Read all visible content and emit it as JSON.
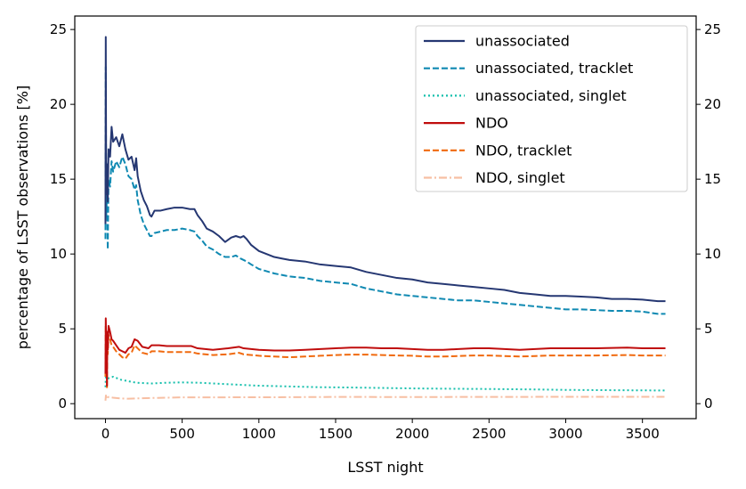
{
  "chart_data": {
    "type": "line",
    "title": "",
    "xlabel": "LSST night",
    "ylabel": "percentage of LSST observations [%]",
    "xlim": [
      -200,
      3850
    ],
    "ylim": [
      -1.0,
      25.9
    ],
    "xticks": [
      0,
      500,
      1000,
      1500,
      2000,
      2500,
      3000,
      3500
    ],
    "yticks": [
      0,
      5,
      10,
      15,
      20,
      25
    ],
    "secondary_y_axis": "right, same scale as left",
    "grid": false,
    "legend_position": "upper right",
    "series": [
      {
        "name": "unassociated",
        "color": "#253772",
        "style": "solid",
        "points": [
          [
            0,
            12
          ],
          [
            2,
            24.5
          ],
          [
            5,
            14
          ],
          [
            10,
            16
          ],
          [
            15,
            13.5
          ],
          [
            20,
            17
          ],
          [
            30,
            16.5
          ],
          [
            40,
            18.5
          ],
          [
            50,
            17.5
          ],
          [
            70,
            17.8
          ],
          [
            90,
            17.2
          ],
          [
            110,
            18
          ],
          [
            130,
            17
          ],
          [
            150,
            16.3
          ],
          [
            170,
            16.5
          ],
          [
            190,
            15.6
          ],
          [
            200,
            16.4
          ],
          [
            210,
            15.2
          ],
          [
            230,
            14.2
          ],
          [
            250,
            13.6
          ],
          [
            270,
            13.2
          ],
          [
            290,
            12.6
          ],
          [
            300,
            12.5
          ],
          [
            320,
            12.9
          ],
          [
            360,
            12.9
          ],
          [
            400,
            13.0
          ],
          [
            450,
            13.1
          ],
          [
            500,
            13.1
          ],
          [
            550,
            13.0
          ],
          [
            580,
            13.0
          ],
          [
            600,
            12.6
          ],
          [
            630,
            12.2
          ],
          [
            660,
            11.7
          ],
          [
            700,
            11.5
          ],
          [
            740,
            11.2
          ],
          [
            780,
            10.8
          ],
          [
            820,
            11.1
          ],
          [
            850,
            11.2
          ],
          [
            880,
            11.1
          ],
          [
            900,
            11.2
          ],
          [
            920,
            11.0
          ],
          [
            950,
            10.6
          ],
          [
            1000,
            10.2
          ],
          [
            1050,
            10.0
          ],
          [
            1100,
            9.8
          ],
          [
            1150,
            9.7
          ],
          [
            1200,
            9.6
          ],
          [
            1300,
            9.5
          ],
          [
            1400,
            9.3
          ],
          [
            1500,
            9.2
          ],
          [
            1600,
            9.1
          ],
          [
            1700,
            8.8
          ],
          [
            1800,
            8.6
          ],
          [
            1900,
            8.4
          ],
          [
            2000,
            8.3
          ],
          [
            2100,
            8.1
          ],
          [
            2200,
            8.0
          ],
          [
            2300,
            7.9
          ],
          [
            2400,
            7.8
          ],
          [
            2500,
            7.7
          ],
          [
            2600,
            7.6
          ],
          [
            2700,
            7.4
          ],
          [
            2800,
            7.3
          ],
          [
            2900,
            7.2
          ],
          [
            3000,
            7.2
          ],
          [
            3100,
            7.15
          ],
          [
            3200,
            7.1
          ],
          [
            3300,
            7.0
          ],
          [
            3400,
            7.0
          ],
          [
            3500,
            6.95
          ],
          [
            3600,
            6.85
          ],
          [
            3650,
            6.85
          ]
        ]
      },
      {
        "name": "unassociated, tracklet",
        "color": "#0f89b2",
        "style": "dashed",
        "points": [
          [
            0,
            11
          ],
          [
            2,
            22.5
          ],
          [
            5,
            12.5
          ],
          [
            10,
            14
          ],
          [
            15,
            10.3
          ],
          [
            20,
            15
          ],
          [
            30,
            14.5
          ],
          [
            40,
            16.2
          ],
          [
            50,
            15.5
          ],
          [
            70,
            16.2
          ],
          [
            90,
            15.8
          ],
          [
            110,
            16.5
          ],
          [
            130,
            16
          ],
          [
            150,
            15.2
          ],
          [
            170,
            15
          ],
          [
            190,
            14.3
          ],
          [
            200,
            14.6
          ],
          [
            210,
            13.6
          ],
          [
            230,
            12.6
          ],
          [
            250,
            12
          ],
          [
            270,
            11.6
          ],
          [
            290,
            11.2
          ],
          [
            300,
            11.2
          ],
          [
            320,
            11.4
          ],
          [
            360,
            11.5
          ],
          [
            400,
            11.6
          ],
          [
            450,
            11.6
          ],
          [
            500,
            11.7
          ],
          [
            550,
            11.6
          ],
          [
            580,
            11.5
          ],
          [
            600,
            11.2
          ],
          [
            630,
            10.9
          ],
          [
            660,
            10.5
          ],
          [
            700,
            10.3
          ],
          [
            740,
            10.0
          ],
          [
            780,
            9.8
          ],
          [
            820,
            9.8
          ],
          [
            850,
            9.9
          ],
          [
            880,
            9.7
          ],
          [
            920,
            9.5
          ],
          [
            950,
            9.3
          ],
          [
            1000,
            9.0
          ],
          [
            1100,
            8.7
          ],
          [
            1200,
            8.5
          ],
          [
            1300,
            8.4
          ],
          [
            1400,
            8.2
          ],
          [
            1500,
            8.1
          ],
          [
            1600,
            8.0
          ],
          [
            1700,
            7.7
          ],
          [
            1800,
            7.5
          ],
          [
            1900,
            7.3
          ],
          [
            2000,
            7.2
          ],
          [
            2100,
            7.1
          ],
          [
            2200,
            7.0
          ],
          [
            2300,
            6.9
          ],
          [
            2400,
            6.9
          ],
          [
            2500,
            6.8
          ],
          [
            2600,
            6.7
          ],
          [
            2700,
            6.6
          ],
          [
            2800,
            6.5
          ],
          [
            2900,
            6.4
          ],
          [
            3000,
            6.3
          ],
          [
            3100,
            6.3
          ],
          [
            3200,
            6.25
          ],
          [
            3300,
            6.2
          ],
          [
            3400,
            6.2
          ],
          [
            3500,
            6.15
          ],
          [
            3600,
            6.0
          ],
          [
            3650,
            6.0
          ]
        ]
      },
      {
        "name": "unassociated, singlet",
        "color": "#14bfac",
        "style": "dotted",
        "points": [
          [
            0,
            1.1
          ],
          [
            3,
            1.9
          ],
          [
            10,
            1.6
          ],
          [
            20,
            1.7
          ],
          [
            50,
            1.8
          ],
          [
            100,
            1.6
          ],
          [
            150,
            1.5
          ],
          [
            200,
            1.4
          ],
          [
            300,
            1.35
          ],
          [
            400,
            1.4
          ],
          [
            500,
            1.42
          ],
          [
            600,
            1.4
          ],
          [
            700,
            1.35
          ],
          [
            800,
            1.3
          ],
          [
            900,
            1.25
          ],
          [
            1000,
            1.2
          ],
          [
            1200,
            1.15
          ],
          [
            1400,
            1.1
          ],
          [
            1600,
            1.08
          ],
          [
            1800,
            1.05
          ],
          [
            2000,
            1.02
          ],
          [
            2200,
            1.0
          ],
          [
            2500,
            0.98
          ],
          [
            2800,
            0.95
          ],
          [
            3000,
            0.92
          ],
          [
            3300,
            0.9
          ],
          [
            3650,
            0.88
          ]
        ]
      },
      {
        "name": "NDO",
        "color": "#c00d0d",
        "style": "solid",
        "points": [
          [
            0,
            2
          ],
          [
            2,
            5.7
          ],
          [
            5,
            4
          ],
          [
            8,
            3.5
          ],
          [
            10,
            1.2
          ],
          [
            12,
            4.8
          ],
          [
            15,
            3.6
          ],
          [
            20,
            5.2
          ],
          [
            30,
            4.8
          ],
          [
            40,
            4.3
          ],
          [
            50,
            4.2
          ],
          [
            70,
            3.9
          ],
          [
            90,
            3.6
          ],
          [
            110,
            3.5
          ],
          [
            130,
            3.4
          ],
          [
            150,
            3.7
          ],
          [
            170,
            3.8
          ],
          [
            190,
            4.3
          ],
          [
            210,
            4.2
          ],
          [
            240,
            3.8
          ],
          [
            280,
            3.7
          ],
          [
            300,
            3.9
          ],
          [
            350,
            3.9
          ],
          [
            400,
            3.85
          ],
          [
            500,
            3.85
          ],
          [
            560,
            3.85
          ],
          [
            600,
            3.7
          ],
          [
            700,
            3.6
          ],
          [
            800,
            3.7
          ],
          [
            870,
            3.8
          ],
          [
            900,
            3.7
          ],
          [
            1000,
            3.6
          ],
          [
            1100,
            3.55
          ],
          [
            1200,
            3.55
          ],
          [
            1300,
            3.6
          ],
          [
            1400,
            3.65
          ],
          [
            1500,
            3.7
          ],
          [
            1600,
            3.75
          ],
          [
            1700,
            3.75
          ],
          [
            1800,
            3.7
          ],
          [
            1900,
            3.7
          ],
          [
            2000,
            3.65
          ],
          [
            2100,
            3.6
          ],
          [
            2200,
            3.6
          ],
          [
            2300,
            3.65
          ],
          [
            2400,
            3.7
          ],
          [
            2500,
            3.7
          ],
          [
            2600,
            3.65
          ],
          [
            2700,
            3.6
          ],
          [
            2800,
            3.65
          ],
          [
            2900,
            3.7
          ],
          [
            3000,
            3.7
          ],
          [
            3200,
            3.7
          ],
          [
            3400,
            3.75
          ],
          [
            3500,
            3.7
          ],
          [
            3650,
            3.7
          ]
        ]
      },
      {
        "name": "NDO, tracklet",
        "color": "#f06a0f",
        "style": "dashed",
        "points": [
          [
            0,
            1.8
          ],
          [
            2,
            5.2
          ],
          [
            5,
            3.5
          ],
          [
            8,
            3.0
          ],
          [
            10,
            1.0
          ],
          [
            12,
            4.4
          ],
          [
            15,
            3.3
          ],
          [
            20,
            4.6
          ],
          [
            30,
            4.3
          ],
          [
            40,
            3.9
          ],
          [
            50,
            3.8
          ],
          [
            70,
            3.5
          ],
          [
            90,
            3.3
          ],
          [
            110,
            3.1
          ],
          [
            130,
            3.0
          ],
          [
            150,
            3.3
          ],
          [
            170,
            3.4
          ],
          [
            190,
            3.9
          ],
          [
            210,
            3.7
          ],
          [
            240,
            3.4
          ],
          [
            280,
            3.3
          ],
          [
            300,
            3.5
          ],
          [
            350,
            3.5
          ],
          [
            400,
            3.45
          ],
          [
            500,
            3.45
          ],
          [
            560,
            3.45
          ],
          [
            600,
            3.35
          ],
          [
            700,
            3.25
          ],
          [
            800,
            3.3
          ],
          [
            870,
            3.4
          ],
          [
            900,
            3.3
          ],
          [
            1000,
            3.2
          ],
          [
            1100,
            3.15
          ],
          [
            1200,
            3.1
          ],
          [
            1300,
            3.15
          ],
          [
            1400,
            3.2
          ],
          [
            1500,
            3.25
          ],
          [
            1600,
            3.28
          ],
          [
            1700,
            3.28
          ],
          [
            1800,
            3.25
          ],
          [
            1900,
            3.22
          ],
          [
            2000,
            3.2
          ],
          [
            2100,
            3.15
          ],
          [
            2200,
            3.15
          ],
          [
            2300,
            3.18
          ],
          [
            2400,
            3.22
          ],
          [
            2500,
            3.22
          ],
          [
            2600,
            3.18
          ],
          [
            2700,
            3.15
          ],
          [
            2800,
            3.18
          ],
          [
            2900,
            3.22
          ],
          [
            3000,
            3.22
          ],
          [
            3200,
            3.22
          ],
          [
            3400,
            3.25
          ],
          [
            3500,
            3.22
          ],
          [
            3650,
            3.22
          ]
        ]
      },
      {
        "name": "NDO, singlet",
        "color": "#f7bfa3",
        "style": "dashdot",
        "points": [
          [
            0,
            0.2
          ],
          [
            3,
            0.55
          ],
          [
            10,
            0.3
          ],
          [
            20,
            0.45
          ],
          [
            50,
            0.4
          ],
          [
            100,
            0.35
          ],
          [
            150,
            0.33
          ],
          [
            200,
            0.35
          ],
          [
            300,
            0.38
          ],
          [
            400,
            0.4
          ],
          [
            500,
            0.42
          ],
          [
            700,
            0.42
          ],
          [
            900,
            0.43
          ],
          [
            1100,
            0.43
          ],
          [
            1300,
            0.44
          ],
          [
            1500,
            0.45
          ],
          [
            1700,
            0.45
          ],
          [
            1900,
            0.44
          ],
          [
            2100,
            0.44
          ],
          [
            2300,
            0.45
          ],
          [
            2500,
            0.45
          ],
          [
            2700,
            0.45
          ],
          [
            2900,
            0.46
          ],
          [
            3100,
            0.46
          ],
          [
            3300,
            0.46
          ],
          [
            3500,
            0.46
          ],
          [
            3650,
            0.46
          ]
        ]
      }
    ]
  }
}
